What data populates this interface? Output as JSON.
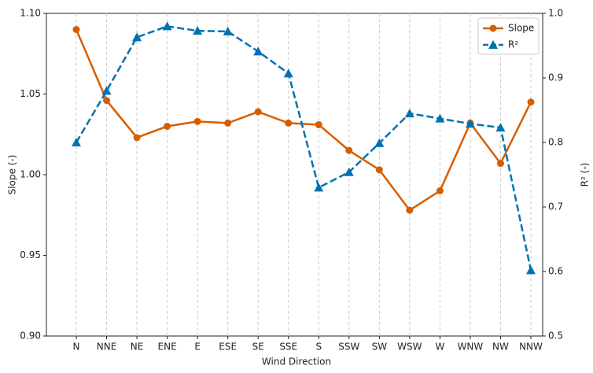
{
  "chart_data": {
    "type": "line",
    "x_label": "Wind Direction",
    "y_label": "Slope (-)",
    "y2_label": "R² (-)",
    "categories": [
      "N",
      "NNE",
      "NE",
      "ENE",
      "E",
      "ESE",
      "SE",
      "SSE",
      "S",
      "SSW",
      "SW",
      "WSW",
      "W",
      "WNW",
      "NW",
      "NNW"
    ],
    "series": [
      {
        "name": "Slope",
        "color": "#d55e00",
        "marker": "circle",
        "dash": "solid",
        "values": [
          1.09,
          1.046,
          1.023,
          1.03,
          1.033,
          1.032,
          1.039,
          1.032,
          1.031,
          1.015,
          1.003,
          0.978,
          0.99,
          1.032,
          1.007,
          1.045
        ]
      },
      {
        "name": "R²",
        "color": "#0072b2",
        "marker": "triangle",
        "dash": "dashed",
        "axis": "y2",
        "values": [
          0.8,
          0.88,
          0.963,
          0.98,
          0.973,
          0.972,
          0.941,
          0.907,
          0.73,
          0.754,
          0.799,
          0.845,
          0.837,
          0.829,
          0.823,
          0.602
        ]
      }
    ],
    "ylim": [
      0.9,
      1.1
    ],
    "yticks": [
      {
        "value": 0.9,
        "label": "0.90"
      },
      {
        "value": 0.95,
        "label": "0.95"
      },
      {
        "value": 1.0,
        "label": "1.00"
      },
      {
        "value": 1.05,
        "label": "1.05"
      },
      {
        "value": 1.1,
        "label": "1.10"
      }
    ],
    "y2lim": [
      0.5,
      1.0
    ],
    "y2ticks": [
      0.5,
      0.6,
      0.7,
      0.8,
      0.9,
      {
        "value": 1.0,
        "label": "1.0"
      }
    ],
    "x_grid": true,
    "legend": "upper right"
  }
}
